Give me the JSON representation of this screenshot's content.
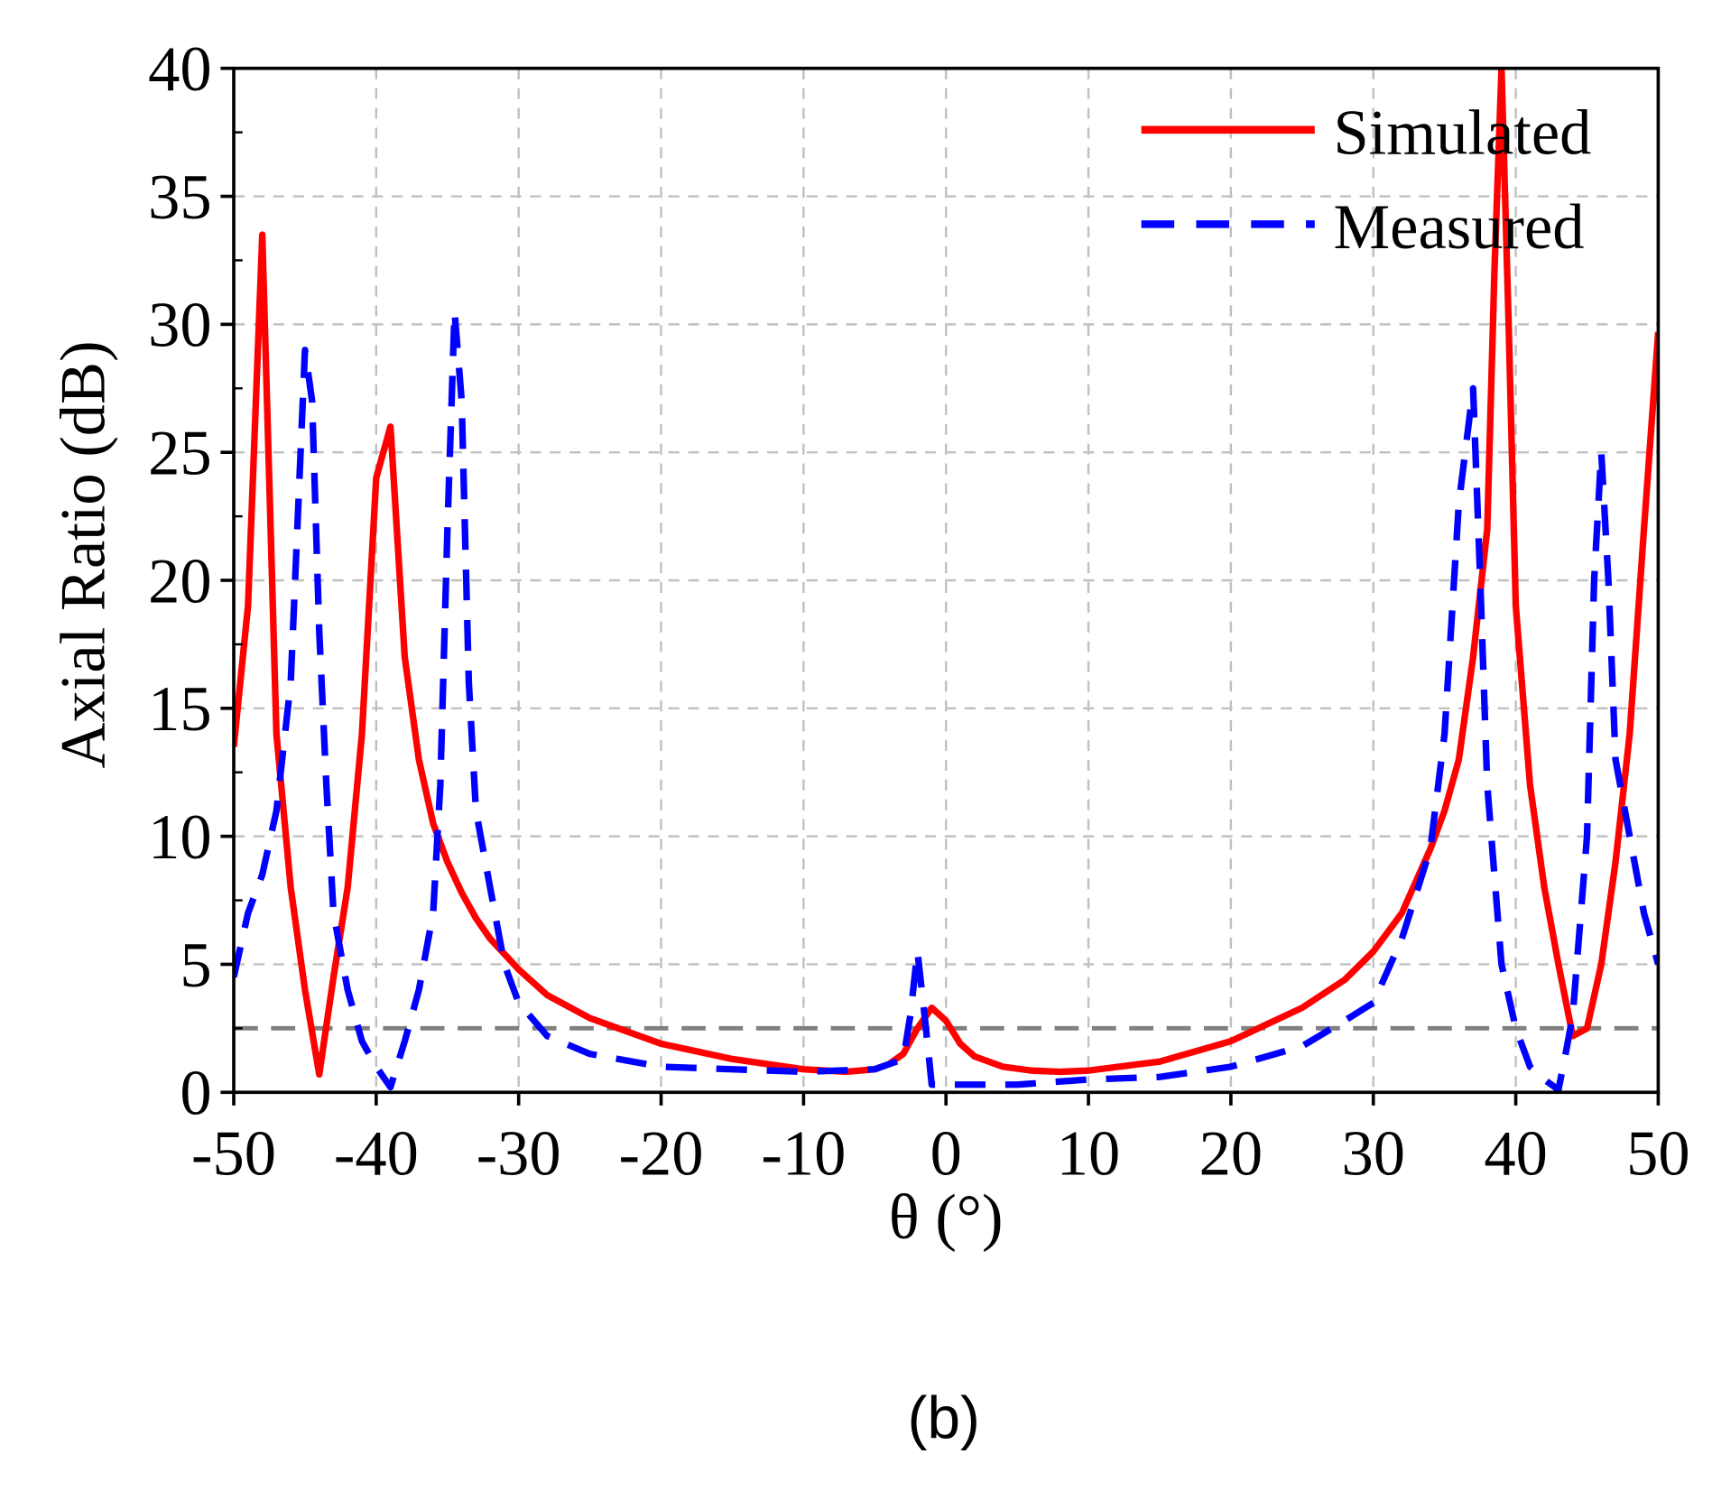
{
  "chart_data": {
    "type": "line",
    "title": "",
    "xlabel": "θ (°)",
    "ylabel": "Axial Ratio (dB)",
    "xlim": [
      -50,
      50
    ],
    "ylim": [
      0,
      40
    ],
    "xticks": [
      -50,
      -40,
      -30,
      -20,
      -10,
      0,
      10,
      20,
      30,
      40,
      50
    ],
    "yticks": [
      0,
      5,
      10,
      15,
      20,
      25,
      30,
      35,
      40
    ],
    "grid": true,
    "legend_position": "top-right",
    "reference_line": {
      "y": 2.5,
      "color": "#808080"
    },
    "series": [
      {
        "name": "Simulated",
        "color": "#ff0000",
        "style": "solid",
        "x": [
          -50,
          -49,
          -48,
          -47,
          -46,
          -45,
          -44,
          -43,
          -42,
          -41,
          -40,
          -39,
          -38,
          -37,
          -36,
          -35,
          -34,
          -33,
          -32,
          -30,
          -28,
          -25,
          -22,
          -20,
          -15,
          -10,
          -7,
          -5,
          -4,
          -3,
          -2,
          -1,
          0,
          1,
          2,
          4,
          6,
          8,
          10,
          15,
          20,
          25,
          28,
          30,
          32,
          34,
          35,
          36,
          37,
          38,
          38.5,
          39,
          39.5,
          40,
          41,
          42,
          43,
          44,
          45,
          46,
          47,
          48,
          49,
          50
        ],
        "y": [
          13.5,
          19,
          33.5,
          14,
          8,
          4,
          0.7,
          4.5,
          8,
          14,
          24,
          26,
          17,
          13,
          10.5,
          9,
          7.8,
          6.8,
          6,
          4.8,
          3.8,
          2.9,
          2.3,
          1.9,
          1.3,
          0.9,
          0.8,
          0.9,
          1.1,
          1.5,
          2.5,
          3.3,
          2.8,
          1.9,
          1.4,
          1,
          0.85,
          0.8,
          0.85,
          1.2,
          2,
          3.3,
          4.4,
          5.5,
          7,
          9.5,
          11,
          13,
          17,
          22,
          32,
          40,
          30,
          19,
          12,
          8,
          5,
          2.2,
          2.5,
          5,
          9,
          14,
          22,
          29.7
        ]
      },
      {
        "name": "Measured",
        "color": "#0000ff",
        "style": "dashed",
        "x": [
          -50,
          -49,
          -48,
          -47,
          -46,
          -45,
          -44.5,
          -44,
          -43.5,
          -43,
          -42,
          -41,
          -40,
          -39,
          -38,
          -37,
          -36,
          -35.5,
          -35,
          -34.5,
          -34,
          -33.5,
          -33,
          -32,
          -31,
          -30,
          -28,
          -25,
          -20,
          -15,
          -10,
          -5,
          -3,
          -2.5,
          -2,
          -1.5,
          -1,
          5,
          10,
          15,
          20,
          25,
          28,
          30,
          32,
          34,
          35,
          36,
          37,
          37.5,
          38,
          39,
          40,
          41,
          42,
          43,
          43.5,
          44,
          45,
          45.5,
          46,
          46.5,
          47,
          48,
          49,
          50
        ],
        "y": [
          4.5,
          7,
          8.5,
          11,
          16,
          29,
          27,
          18,
          12,
          7,
          4,
          2,
          1,
          0.2,
          2,
          4,
          7,
          12,
          22,
          30.5,
          27,
          16,
          11,
          8,
          5,
          3.5,
          2.2,
          1.5,
          1,
          0.9,
          0.8,
          0.9,
          1.3,
          3,
          5.5,
          3,
          0.3,
          0.3,
          0.5,
          0.6,
          1,
          1.8,
          2.8,
          3.5,
          6,
          9.5,
          14,
          23,
          27.5,
          20,
          12,
          5,
          2.5,
          1,
          0.5,
          0.1,
          1.5,
          3,
          10,
          20,
          25,
          20,
          13,
          10,
          7,
          5
        ]
      }
    ]
  },
  "caption": "(b)"
}
